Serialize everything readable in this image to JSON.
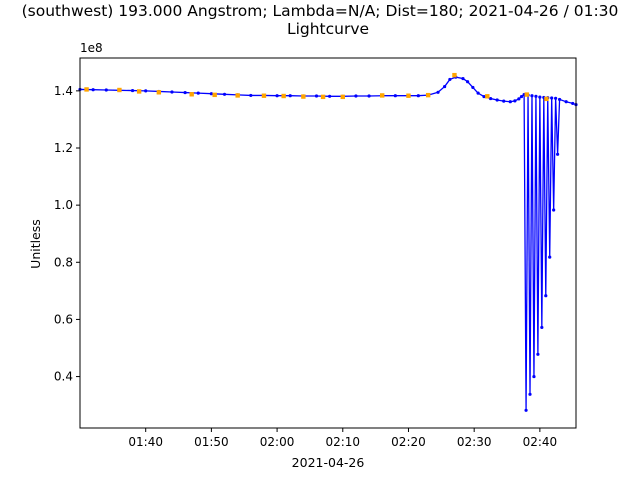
{
  "chart_data": {
    "type": "line",
    "title": "(southwest) 193.000 Angstrom; Lambda=N/A; Dist=180; 2021-04-26 / 01:30",
    "subtitle": "Lightcurve",
    "xlabel": "2021-04-26",
    "ylabel": "Unitless",
    "y_offset_label": "1e8",
    "x_unit": "minutes after 01:30 on 2021-04-26",
    "xlim": [
      0,
      75.5
    ],
    "ylim": [
      0.22,
      1.515
    ],
    "x_ticks": [
      {
        "value": 10,
        "label": "01:40"
      },
      {
        "value": 20,
        "label": "01:50"
      },
      {
        "value": 30,
        "label": "02:00"
      },
      {
        "value": 40,
        "label": "02:10"
      },
      {
        "value": 50,
        "label": "02:20"
      },
      {
        "value": 60,
        "label": "02:30"
      },
      {
        "value": 70,
        "label": "02:40"
      }
    ],
    "y_ticks": [
      {
        "value": 0.4,
        "label": "0.4"
      },
      {
        "value": 0.6,
        "label": "0.6"
      },
      {
        "value": 0.8,
        "label": "0.8"
      },
      {
        "value": 1.0,
        "label": "1.0"
      },
      {
        "value": 1.2,
        "label": "1.2"
      },
      {
        "value": 1.4,
        "label": "1.4"
      }
    ],
    "grid": false,
    "legend": "none",
    "series": [
      {
        "color": "#0000ff",
        "marker": "dot",
        "points": [
          [
            0.0,
            1.405
          ],
          [
            2,
            1.404
          ],
          [
            4,
            1.403
          ],
          [
            6,
            1.402
          ],
          [
            8,
            1.401
          ],
          [
            10,
            1.4
          ],
          [
            12,
            1.398
          ],
          [
            14,
            1.396
          ],
          [
            16,
            1.394
          ],
          [
            18,
            1.392
          ],
          [
            20,
            1.39
          ],
          [
            22,
            1.388
          ],
          [
            24,
            1.386
          ],
          [
            26,
            1.384
          ],
          [
            28,
            1.384
          ],
          [
            30,
            1.383
          ],
          [
            32,
            1.383
          ],
          [
            34,
            1.382
          ],
          [
            36,
            1.382
          ],
          [
            38,
            1.381
          ],
          [
            40,
            1.381
          ],
          [
            42,
            1.382
          ],
          [
            44,
            1.382
          ],
          [
            46,
            1.383
          ],
          [
            48,
            1.383
          ],
          [
            50,
            1.383
          ],
          [
            51.5,
            1.383
          ],
          [
            53,
            1.385
          ],
          [
            54.5,
            1.395
          ],
          [
            55.5,
            1.415
          ],
          [
            56.3,
            1.44
          ],
          [
            57.2,
            1.448
          ],
          [
            58.3,
            1.443
          ],
          [
            59,
            1.432
          ],
          [
            59.8,
            1.412
          ],
          [
            60.6,
            1.392
          ],
          [
            61.5,
            1.38
          ],
          [
            62.5,
            1.373
          ],
          [
            63.5,
            1.368
          ],
          [
            64.5,
            1.364
          ],
          [
            65.5,
            1.362
          ],
          [
            66.2,
            1.365
          ],
          [
            66.8,
            1.372
          ],
          [
            67.2,
            1.38
          ],
          [
            67.6,
            1.387
          ],
          [
            67.9,
            0.282
          ],
          [
            68.2,
            1.385
          ],
          [
            68.5,
            0.338
          ],
          [
            68.8,
            1.383
          ],
          [
            69.1,
            0.4
          ],
          [
            69.4,
            1.381
          ],
          [
            69.7,
            0.478
          ],
          [
            70.0,
            1.378
          ],
          [
            70.3,
            0.572
          ],
          [
            70.6,
            1.377
          ],
          [
            70.9,
            0.683
          ],
          [
            71.2,
            1.376
          ],
          [
            71.5,
            0.818
          ],
          [
            71.8,
            1.375
          ],
          [
            72.1,
            0.983
          ],
          [
            72.4,
            1.374
          ],
          [
            72.7,
            1.178
          ],
          [
            73,
            1.37
          ],
          [
            74,
            1.362
          ],
          [
            75,
            1.356
          ],
          [
            75.5,
            1.352
          ]
        ]
      },
      {
        "color": "#ffa500",
        "marker": "square",
        "points": [
          [
            1,
            1.405
          ],
          [
            6,
            1.403
          ],
          [
            9,
            1.398
          ],
          [
            12,
            1.395
          ],
          [
            17,
            1.388
          ],
          [
            20.5,
            1.386
          ],
          [
            24,
            1.384
          ],
          [
            28,
            1.383
          ],
          [
            31,
            1.382
          ],
          [
            34,
            1.38
          ],
          [
            37,
            1.379
          ],
          [
            40,
            1.379
          ],
          [
            46,
            1.384
          ],
          [
            50,
            1.383
          ],
          [
            53,
            1.385
          ],
          [
            57,
            1.455
          ],
          [
            62,
            1.381
          ],
          [
            68,
            1.387
          ],
          [
            71,
            1.372
          ]
        ]
      }
    ]
  }
}
